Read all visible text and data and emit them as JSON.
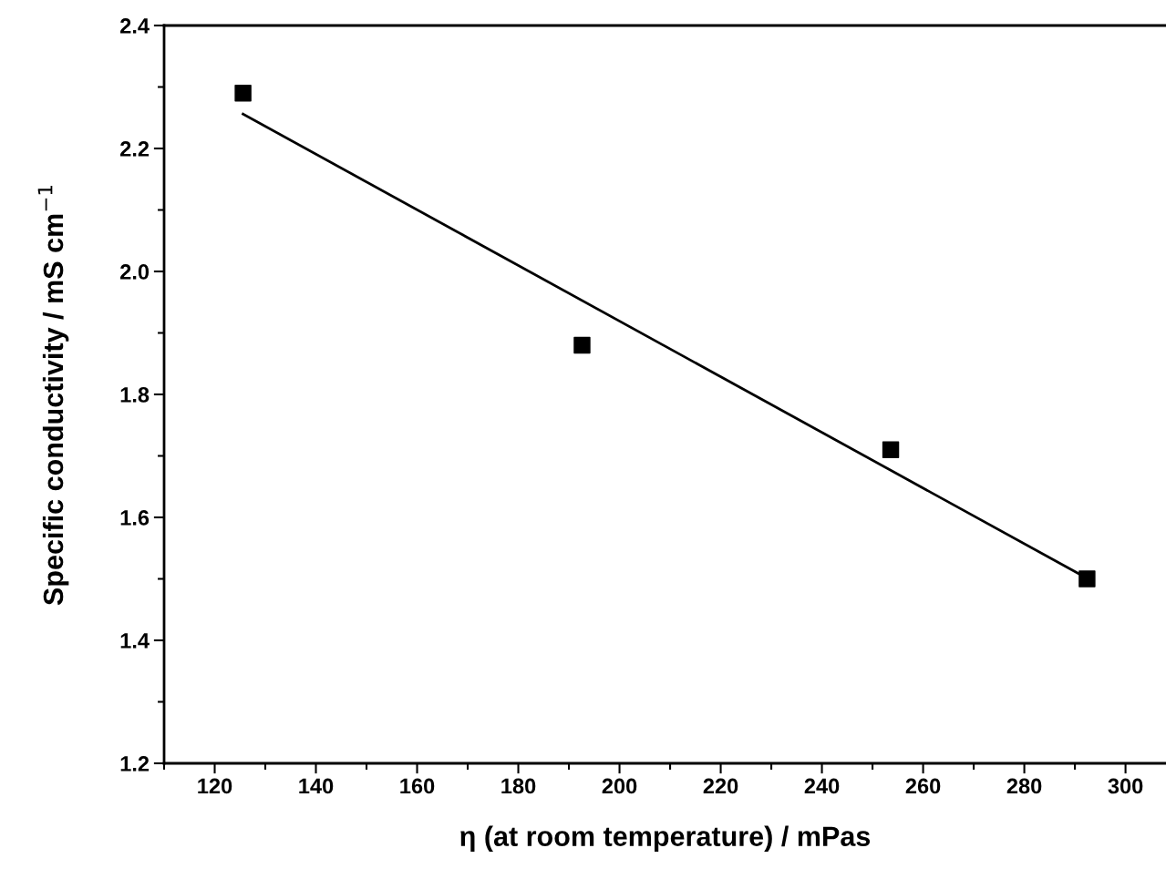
{
  "chart_data": {
    "type": "scatter",
    "xlabel": "η (at room temperature) / mPas",
    "ylabel": "Specific conductivity / mS cm$^{−1}$",
    "series": [
      {
        "color": "#000000",
        "marker": "square",
        "x": [
          125.6,
          192.6,
          253.6,
          292.4
        ],
        "values": [
          2.29,
          1.88,
          1.71,
          1.5
        ]
      },
      {
        "type": "line",
        "color": "#000000",
        "marker": "none",
        "line_style": "solid",
        "x": [
          125.6,
          292.4
        ],
        "values": [
          2.256,
          1.501
        ]
      }
    ],
    "xlim": [
      110,
      308
    ],
    "ylim": [
      1.2,
      2.4
    ],
    "xticks": [
      120,
      140,
      160,
      180,
      200,
      220,
      240,
      260,
      280,
      300
    ],
    "yticks": [
      1.2,
      1.4,
      1.6,
      1.8,
      {
        "value": 2.0,
        "label": "2.0"
      },
      2.2,
      2.4
    ],
    "grid": false,
    "legend": false
  }
}
